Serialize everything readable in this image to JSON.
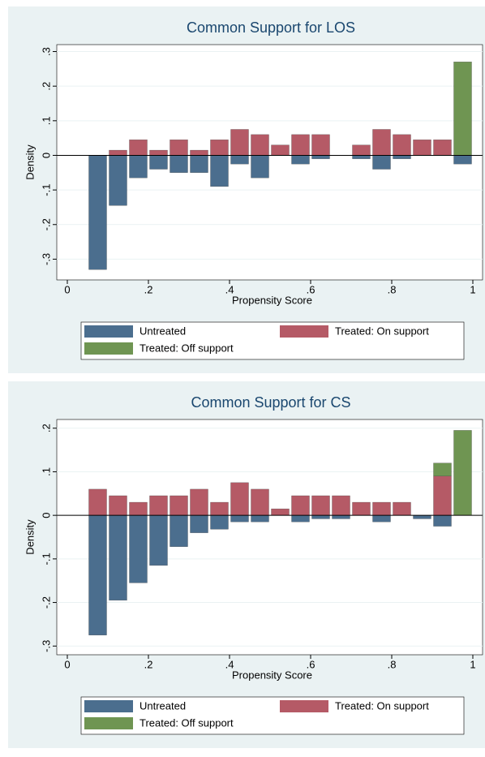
{
  "chart_data": [
    {
      "type": "bar",
      "title": "Common Support for LOS",
      "x_label": "Propensity Score",
      "y_label": "Density",
      "x": [
        0.075,
        0.125,
        0.175,
        0.225,
        0.275,
        0.325,
        0.375,
        0.425,
        0.475,
        0.525,
        0.575,
        0.625,
        0.675,
        0.725,
        0.775,
        0.825,
        0.875,
        0.925,
        0.975
      ],
      "series": [
        {
          "name": "Untreated",
          "color": "#4b6e8e",
          "values": [
            -0.33,
            -0.145,
            -0.065,
            -0.04,
            -0.05,
            -0.05,
            -0.09,
            -0.025,
            -0.065,
            null,
            -0.025,
            -0.01,
            null,
            -0.01,
            -0.04,
            -0.01,
            null,
            null,
            -0.025
          ]
        },
        {
          "name": "Treated: On support",
          "color": "#b55a66",
          "values": [
            null,
            0.015,
            0.045,
            0.015,
            0.045,
            0.015,
            0.045,
            0.075,
            0.06,
            0.03,
            0.06,
            0.06,
            null,
            0.03,
            0.075,
            0.06,
            0.045,
            0.045,
            null
          ]
        },
        {
          "name": "Treated: Off support",
          "color": "#6f9552",
          "values": [
            null,
            null,
            null,
            null,
            null,
            null,
            null,
            null,
            null,
            null,
            null,
            null,
            null,
            null,
            null,
            null,
            null,
            null,
            0.27
          ]
        }
      ],
      "xlim": [
        -0.026,
        1.024
      ],
      "ylim": [
        -0.36,
        0.32
      ],
      "xticks": [
        0,
        {
          "value": 0.2,
          "label": ".2"
        },
        {
          "value": 0.4,
          "label": ".4"
        },
        {
          "value": 0.6,
          "label": ".6"
        },
        {
          "value": 0.8,
          "label": ".8"
        },
        1
      ],
      "yticks": [
        {
          "value": -0.3,
          "label": "-.3"
        },
        {
          "value": -0.2,
          "label": "-.2"
        },
        {
          "value": -0.1,
          "label": "-.1"
        },
        0,
        {
          "value": 0.1,
          "label": ".1"
        },
        {
          "value": 0.2,
          "label": ".2"
        },
        {
          "value": 0.3,
          "label": ".3"
        }
      ],
      "grid": true,
      "stacked": true,
      "legend": "bottom"
    },
    {
      "type": "bar",
      "title": "Common Support for CS",
      "x_label": "Propensity Score",
      "y_label": "Density",
      "x": [
        0.075,
        0.125,
        0.175,
        0.225,
        0.275,
        0.325,
        0.375,
        0.425,
        0.475,
        0.525,
        0.575,
        0.625,
        0.675,
        0.725,
        0.775,
        0.825,
        0.875,
        0.925,
        0.975
      ],
      "series": [
        {
          "name": "Untreated",
          "color": "#4b6e8e",
          "values": [
            -0.275,
            -0.195,
            -0.155,
            -0.115,
            -0.072,
            -0.04,
            -0.032,
            -0.015,
            -0.015,
            null,
            -0.015,
            -0.008,
            -0.008,
            null,
            -0.015,
            null,
            -0.008,
            -0.025,
            null
          ]
        },
        {
          "name": "Treated: On support",
          "color": "#b55a66",
          "values": [
            0.06,
            0.045,
            0.03,
            0.045,
            0.045,
            0.06,
            0.03,
            0.075,
            0.06,
            0.015,
            0.045,
            0.045,
            0.045,
            0.03,
            0.03,
            0.03,
            null,
            0.09,
            null
          ]
        },
        {
          "name": "Treated: Off support",
          "color": "#6f9552",
          "values": [
            null,
            null,
            null,
            null,
            null,
            null,
            null,
            null,
            null,
            null,
            null,
            null,
            null,
            null,
            null,
            null,
            null,
            0.03,
            0.195
          ]
        }
      ],
      "xlim": [
        -0.026,
        1.024
      ],
      "ylim": [
        -0.32,
        0.22
      ],
      "xticks": [
        0,
        {
          "value": 0.2,
          "label": ".2"
        },
        {
          "value": 0.4,
          "label": ".4"
        },
        {
          "value": 0.6,
          "label": ".6"
        },
        {
          "value": 0.8,
          "label": ".8"
        },
        1
      ],
      "yticks": [
        {
          "value": -0.3,
          "label": "-.3"
        },
        {
          "value": -0.2,
          "label": "-.2"
        },
        {
          "value": -0.1,
          "label": "-.1"
        },
        0,
        {
          "value": 0.1,
          "label": ".1"
        },
        {
          "value": 0.2,
          "label": ".2"
        }
      ],
      "grid": true,
      "stacked": true,
      "legend": "bottom"
    }
  ]
}
